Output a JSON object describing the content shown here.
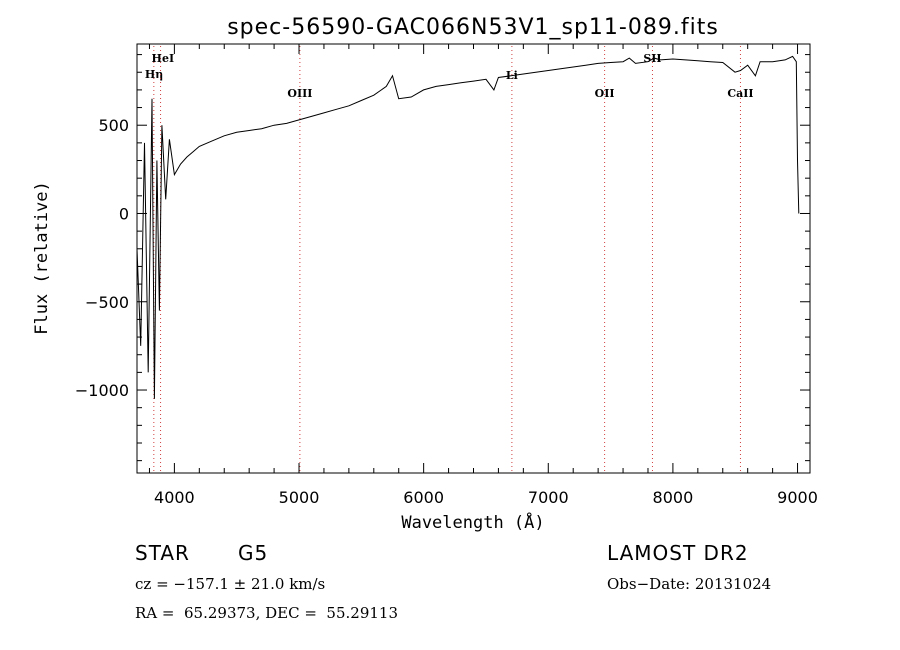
{
  "chart_data": {
    "type": "line",
    "title": "spec-56590-GAC066N53V1_sp11-089.fits",
    "xlabel": "Wavelength (Å)",
    "ylabel": "Flux (relative)",
    "xlim": [
      3700,
      9100
    ],
    "ylim": [
      -1470,
      960
    ],
    "xticks": [
      4000,
      5000,
      6000,
      7000,
      8000,
      9000
    ],
    "yticks": [
      -1000,
      -500,
      0,
      500
    ],
    "grid": false,
    "series": [
      {
        "x": [
          3700,
          3730,
          3760,
          3790,
          3820,
          3840,
          3860,
          3880,
          3900,
          3930,
          3960,
          4000,
          4050,
          4100,
          4150,
          4200,
          4300,
          4400,
          4500,
          4600,
          4700,
          4800,
          4900,
          5000,
          5100,
          5200,
          5300,
          5400,
          5500,
          5600,
          5700,
          5750,
          5800,
          5900,
          6000,
          6100,
          6200,
          6300,
          6400,
          6500,
          6564,
          6600,
          6700,
          6800,
          6900,
          7000,
          7100,
          7200,
          7300,
          7400,
          7500,
          7600,
          7650,
          7700,
          7800,
          7850,
          7900,
          8000,
          8100,
          8200,
          8300,
          8400,
          8498,
          8542,
          8600,
          8662,
          8700,
          8800,
          8900,
          8960,
          8990,
          9000,
          9010
        ],
        "y": [
          -200,
          -750,
          400,
          -900,
          650,
          -1050,
          300,
          -550,
          500,
          80,
          420,
          220,
          280,
          320,
          350,
          380,
          410,
          440,
          460,
          470,
          480,
          500,
          510,
          530,
          550,
          570,
          590,
          610,
          640,
          670,
          720,
          780,
          650,
          660,
          700,
          720,
          730,
          740,
          750,
          760,
          700,
          770,
          780,
          790,
          800,
          810,
          820,
          830,
          840,
          850,
          855,
          860,
          880,
          850,
          860,
          880,
          870,
          875,
          870,
          865,
          860,
          855,
          800,
          810,
          840,
          780,
          860,
          860,
          870,
          890,
          860,
          300,
          0
        ]
      }
    ],
    "lines": [
      {
        "label": "Hη",
        "x": 3835
      },
      {
        "label": "HeI",
        "x": 3889
      },
      {
        "label": "OIII",
        "x": 5007
      },
      {
        "label": "Li",
        "x": 6708
      },
      {
        "label": "OII",
        "x": 7452
      },
      {
        "label": "SII",
        "x": 7836
      },
      {
        "label": "CaII",
        "x": 8542
      }
    ]
  },
  "info": {
    "class": "STAR",
    "subclass": "G5",
    "survey": "LAMOST DR2",
    "cz": "cz = −157.1 ± 21.0 km/s",
    "obs_date": "Obs−Date: 20131024",
    "radec": "RA =  65.29373, DEC =  55.29113"
  }
}
